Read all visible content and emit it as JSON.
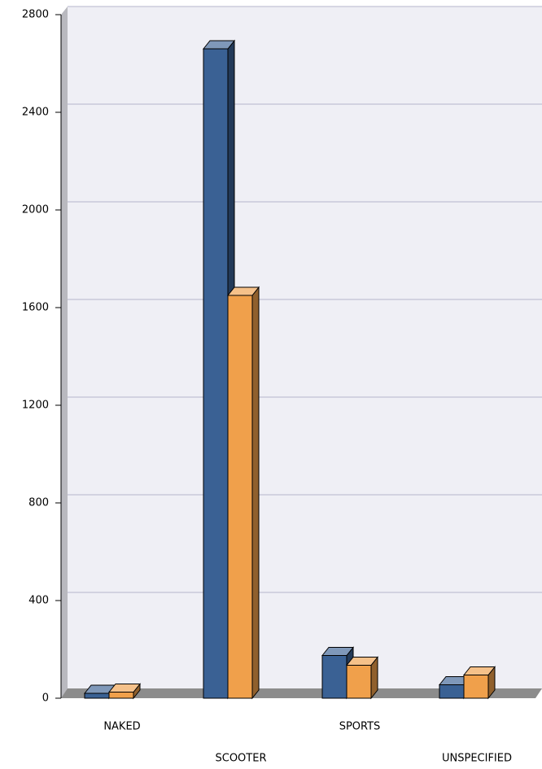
{
  "chart_data": {
    "type": "bar3d",
    "categories": [
      "NAKED",
      "SCOOTER",
      "SPORTS",
      "UNSPECIFIED"
    ],
    "series": [
      {
        "color": "#3a6194",
        "values": [
          20,
          2660,
          175,
          55
        ]
      },
      {
        "color": "#f0a04b",
        "values": [
          25,
          1650,
          135,
          95
        ]
      }
    ],
    "ylim": [
      0,
      2800
    ],
    "yticks": [
      0,
      400,
      800,
      1200,
      1600,
      2000,
      2400,
      2800
    ],
    "grid": true
  }
}
